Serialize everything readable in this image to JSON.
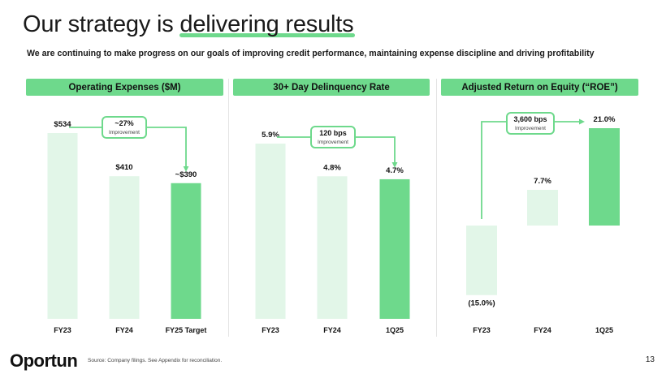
{
  "header": {
    "title_pre": "Our strategy is ",
    "title_highlight": "delivering results",
    "subtitle": "We are continuing to make progress on our goals of improving credit performance, maintaining expense discipline and driving profitability"
  },
  "panels": [
    {
      "title": "Operating Expenses ($M)"
    },
    {
      "title": "30+ Day Delinquency Rate"
    },
    {
      "title": "Adjusted Return on Equity (“ROE”)"
    }
  ],
  "chart_data": [
    {
      "type": "bar",
      "title": "Operating Expenses ($M)",
      "categories": [
        "FY23",
        "FY24",
        "FY25 Target"
      ],
      "values": [
        534,
        410,
        390
      ],
      "labels": [
        "$534",
        "$410",
        "~$390"
      ],
      "ylim": [
        0,
        534
      ],
      "callout": {
        "value": "~27%",
        "text": "Improvement"
      }
    },
    {
      "type": "bar",
      "title": "30+ Day Delinquency Rate",
      "categories": [
        "FY23",
        "FY24",
        "1Q25"
      ],
      "values": [
        5.9,
        4.8,
        4.7
      ],
      "labels": [
        "5.9%",
        "4.8%",
        "4.7%"
      ],
      "ylim": [
        0,
        5.9
      ],
      "callout": {
        "value": "120 bps",
        "text": "Improvement"
      }
    },
    {
      "type": "bar",
      "title": "Adjusted Return on Equity (“ROE”)",
      "categories": [
        "FY23",
        "FY24",
        "1Q25"
      ],
      "values": [
        -15.0,
        7.7,
        21.0
      ],
      "labels": [
        "(15.0%)",
        "7.7%",
        "21.0%"
      ],
      "ylim": [
        -15.0,
        21.0
      ],
      "callout": {
        "value": "3,600 bps",
        "text": "Improvement"
      }
    }
  ],
  "colors": {
    "accent": "#6ed98c",
    "light_bar": "#e2f6e8",
    "text": "#111111"
  },
  "footer": {
    "logo": "Oportun",
    "source": "Source: Company filings. See Appendix for reconciliation.",
    "page": "13"
  }
}
